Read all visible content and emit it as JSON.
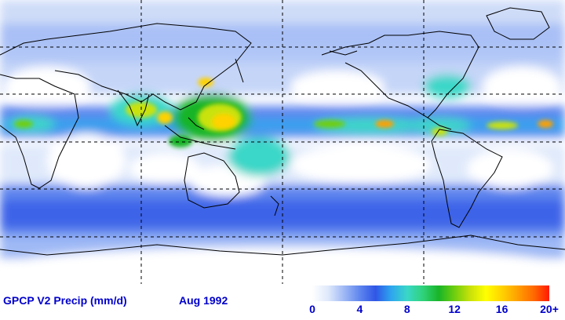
{
  "footer": {
    "title": "GPCP V2 Precip (mm/d)",
    "date": "Aug 1992"
  },
  "legend": {
    "ticks": [
      "0",
      "4",
      "8",
      "12",
      "16",
      "20+"
    ],
    "colors": [
      "#ffffff",
      "#dfe9fb",
      "#9fb9f5",
      "#5f86ee",
      "#2f56e6",
      "#2ea6ee",
      "#3ad7c8",
      "#2fd27a",
      "#19b428",
      "#6fce0f",
      "#c9e20a",
      "#ffff00",
      "#ffd200",
      "#ffa000",
      "#ff6a00",
      "#ff1a00"
    ]
  },
  "colors": {
    "text": "#0000cc",
    "tick_text": "#0000cc",
    "coast": "#000000",
    "grid": "#000000"
  }
}
